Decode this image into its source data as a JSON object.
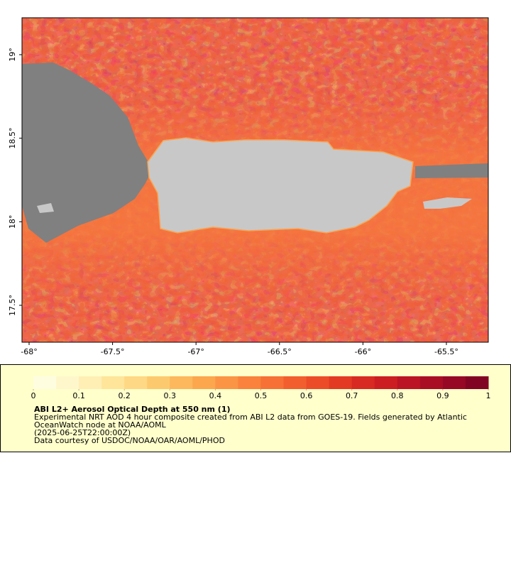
{
  "chart_data": {
    "type": "map",
    "xlim": [
      -68.0425,
      -65.249
    ],
    "ylim": [
      17.279,
      19.221
    ],
    "xticks": [
      {
        "value": -68,
        "label": "-68°"
      },
      {
        "value": -67.5,
        "label": "-67.5°"
      },
      {
        "value": -67,
        "label": "-67°"
      },
      {
        "value": -66.5,
        "label": "-66.5°"
      },
      {
        "value": -66,
        "label": "-66°"
      },
      {
        "value": -65.5,
        "label": "-65.5°"
      }
    ],
    "yticks": [
      {
        "value": 19,
        "label": "19°"
      },
      {
        "value": 18.5,
        "label": "18.5°"
      },
      {
        "value": 18,
        "label": "18°"
      },
      {
        "value": 17.5,
        "label": "17.5°"
      }
    ],
    "colorbar": {
      "clim": [
        0,
        1
      ],
      "ticks": [
        0,
        0.1,
        0.2,
        0.3,
        0.4,
        0.5,
        0.6,
        0.7,
        0.8,
        0.9,
        1
      ],
      "colors": [
        "#fffde0",
        "#fff7cc",
        "#ffefb4",
        "#fee59a",
        "#fed884",
        "#fdc96e",
        "#fdb75c",
        "#fca64e",
        "#fb9444",
        "#fa823c",
        "#f77035",
        "#f25e2e",
        "#ec4c28",
        "#e33a24",
        "#d82a22",
        "#cb1d22",
        "#bb1424",
        "#a90d26",
        "#960826",
        "#820424"
      ]
    },
    "title": "ABI L2+ Aerosol Optical Depth at 550 nm (1)",
    "description": [
      "Experimental NRT AOD 4 hour composite created from ABI L2 data from GOES-19. Fields generated by Atlantic",
      "OceanWatch node at NOAA/AOML",
      "(2025-06-25T22:00:00Z)",
      "Data courtesy of USDOC/NOAA/OAR/AOML/PHOD"
    ]
  }
}
